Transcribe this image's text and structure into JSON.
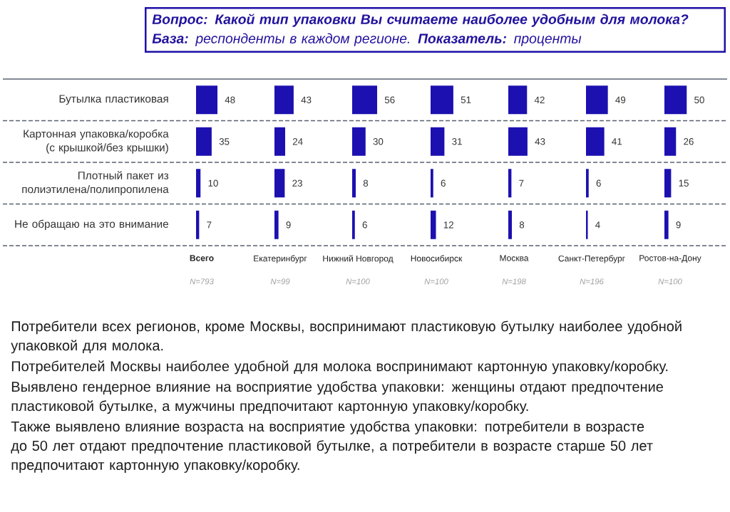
{
  "chart_data": [
    {
      "type": "other",
      "title": "Вопрос: Какой тип упаковки Вы считаете наиболее удобным для молока?",
      "subtitle": "**База:** респонденты в каждом регионе. **Показатель:** проценты",
      "annotations": [
        "Потребители всех регионов, кроме Москвы, воспринимают пластиковую бутылку наиболее удобной упаковкой для молока.",
        "Потребителей Москвы наиболее удобной для молока воспринимают картонную упаковку/коробку.",
        "Выявлено гендерное влияние на восприятие удобства упаковки: женщины отдают предпочтение пластиковой бутылке, а мужчины предпочитают картонную упаковку/коробку.",
        "Также выявлено влияние возраста на восприятие удобства упаковки: потребители в возрасте до 50 лет отдают предпочтение пластиковой бутылке, а потребители в возрасте старше 50 лет предпочитают картонную упаковку/коробку."
      ]
    },
    {
      "type": "bar",
      "orientation": "horizontal",
      "categories": [
        "Бутылка пластиковая",
        "Картонная упаковка/коробка (с крышкой/без крышки)",
        "Плотный пакет из полиэтилена/полипропилена",
        "Не обращаю на это внимание"
      ],
      "values": [
        48,
        35,
        10,
        7
      ],
      "color": "#1c10b0",
      "data_labels": true,
      "tick_labels": "y",
      "xlabel": "Всего",
      "annotations": [
        "N=793"
      ]
    },
    {
      "type": "bar",
      "orientation": "horizontal",
      "categories": [
        null,
        null,
        null,
        null
      ],
      "values": [
        43,
        24,
        23,
        9
      ],
      "color": "#1c10b0",
      "data_labels": true,
      "tick_labels": false,
      "xlabel": "Екатеринбург",
      "annotations": [
        "N=99"
      ]
    },
    {
      "type": "bar",
      "orientation": "horizontal",
      "categories": [
        null,
        null,
        null,
        null
      ],
      "values": [
        56,
        30,
        8,
        6
      ],
      "color": "#1c10b0",
      "data_labels": true,
      "tick_labels": false,
      "xlabel": "Нижний Новгород",
      "annotations": [
        "N=100"
      ]
    },
    {
      "type": "bar",
      "orientation": "horizontal",
      "categories": [
        null,
        null,
        null,
        null
      ],
      "values": [
        51,
        31,
        6,
        12
      ],
      "color": "#1c10b0",
      "data_labels": true,
      "tick_labels": false,
      "xlabel": "Новосибирск",
      "annotations": [
        "N=100"
      ]
    },
    {
      "type": "bar",
      "orientation": "horizontal",
      "categories": [
        null,
        null,
        null,
        null
      ],
      "values": [
        42,
        43,
        7,
        8
      ],
      "color": "#1c10b0",
      "data_labels": true,
      "tick_labels": false,
      "xlabel": "Москва",
      "annotations": [
        "N=198"
      ]
    },
    {
      "type": "bar",
      "orientation": "horizontal",
      "categories": [
        null,
        null,
        null,
        null
      ],
      "values": [
        49,
        41,
        6,
        4
      ],
      "color": "#1c10b0",
      "data_labels": true,
      "tick_labels": false,
      "xlabel": "Санкт-Петербург",
      "annotations": [
        "N=196"
      ]
    },
    {
      "type": "bar",
      "orientation": "horizontal",
      "categories": [
        null,
        null,
        null,
        null
      ],
      "values": [
        50,
        26,
        15,
        9
      ],
      "color": "#1c10b0",
      "data_labels": true,
      "tick_labels": false,
      "xlabel": "Ростов-на-Дону",
      "annotations": [
        "N=100"
      ]
    }
  ]
}
